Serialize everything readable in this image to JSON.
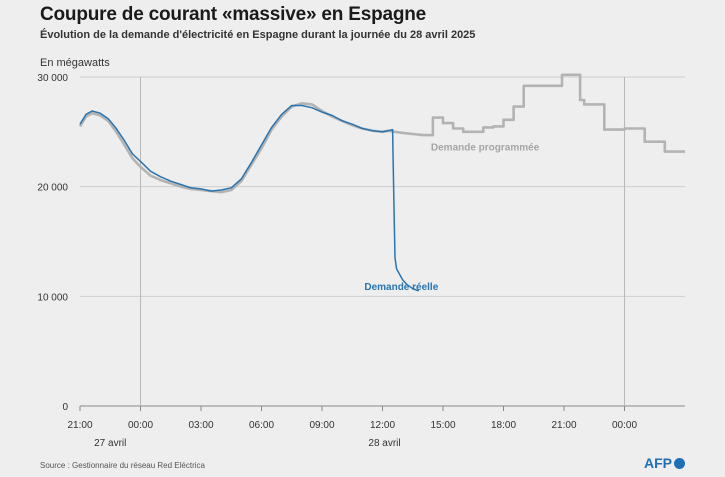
{
  "title": "Coupure de courant «massive» en Espagne",
  "subtitle": "Évolution de la demande d'électricité en Espagne durant la journée du 28 avril 2025",
  "unit_label": "En mégawatts",
  "source": "Source : Gestionnaire du réseau Red Eléctrica",
  "logo_text": "AFP",
  "colors": {
    "real": "#2a74b0",
    "planned": "#b3b3b3",
    "grid": "#cfcfcf"
  },
  "chart_data": {
    "type": "line",
    "ylim": [
      0,
      30000
    ],
    "yticks": [
      0,
      10000,
      20000,
      30000
    ],
    "ytick_labels": [
      "0",
      "10 000",
      "20 000",
      "30 000"
    ],
    "xlim": [
      21,
      51
    ],
    "xticks": [
      21,
      24,
      27,
      30,
      33,
      36,
      39,
      42,
      45,
      48
    ],
    "xtick_labels": [
      "21:00",
      "00:00",
      "03:00",
      "06:00",
      "09:00",
      "12:00",
      "15:00",
      "18:00",
      "21:00",
      "00:00"
    ],
    "day_labels": [
      {
        "x": 22.5,
        "text": "27 avril"
      },
      {
        "x": 36.1,
        "text": "28 avril"
      }
    ],
    "day_separators": [
      24,
      48
    ],
    "series": [
      {
        "name": "Demande programmée",
        "x": [
          21,
          21.3,
          21.6,
          22,
          22.4,
          22.8,
          23.2,
          23.6,
          24,
          24.5,
          25,
          25.5,
          26,
          26.5,
          27,
          27.5,
          28,
          28.5,
          29,
          29.5,
          30,
          30.5,
          31,
          31.5,
          32,
          32.5,
          33,
          33.5,
          34,
          34.5,
          35,
          35.5,
          36,
          36.3,
          36.6,
          37,
          37.5,
          38,
          38.5,
          38.5,
          39,
          39,
          39.5,
          39.5,
          40,
          40,
          41,
          41,
          41.5,
          41.5,
          42,
          42,
          42.5,
          42.5,
          43,
          43,
          44,
          44,
          44.9,
          44.9,
          45.8,
          45.8,
          46,
          46,
          47,
          47,
          48,
          48,
          49,
          49,
          50,
          50,
          51
        ],
        "y": [
          25500,
          26400,
          26700,
          26500,
          26000,
          25000,
          23800,
          22600,
          21800,
          21000,
          20600,
          20300,
          20000,
          19800,
          19700,
          19600,
          19500,
          19700,
          20500,
          22000,
          23500,
          25200,
          26400,
          27300,
          27600,
          27500,
          26900,
          26400,
          26000,
          25600,
          25300,
          25100,
          25000,
          25100,
          25000,
          24900,
          24800,
          24700,
          24700,
          26300,
          26300,
          25800,
          25800,
          25300,
          25300,
          25000,
          25000,
          25400,
          25400,
          25500,
          25500,
          26100,
          26100,
          27300,
          27300,
          29200,
          29200,
          29200,
          29200,
          30200,
          30200,
          27900,
          27900,
          27500,
          27500,
          25200,
          25200,
          25300,
          25300,
          24100,
          24100,
          23200,
          23200
        ]
      },
      {
        "name": "Demande réelle",
        "x": [
          21,
          21.3,
          21.6,
          22,
          22.4,
          22.8,
          23.2,
          23.6,
          24,
          24.5,
          25,
          25.5,
          26,
          26.5,
          27,
          27.5,
          28,
          28.5,
          29,
          29.5,
          30,
          30.5,
          31,
          31.5,
          32,
          32.5,
          33,
          33.5,
          34,
          34.5,
          35,
          35.5,
          36,
          36.3,
          36.5,
          36.56,
          36.62,
          36.7,
          36.85,
          37,
          37.2,
          37.5,
          37.8
        ],
        "y": [
          25700,
          26600,
          26900,
          26700,
          26200,
          25300,
          24200,
          23000,
          22300,
          21400,
          20900,
          20500,
          20200,
          19900,
          19800,
          19600,
          19700,
          19900,
          20700,
          22200,
          23800,
          25400,
          26600,
          27400,
          27400,
          27200,
          26800,
          26500,
          26000,
          25700,
          25300,
          25100,
          25000,
          25100,
          25200,
          19000,
          13500,
          12500,
          12000,
          11500,
          11100,
          10700,
          10500
        ]
      }
    ],
    "annotations": [
      {
        "text": "Demande programmée",
        "x": 38.4,
        "y": 23300
      },
      {
        "text": "Demande réelle",
        "x": 35.1,
        "y": 10600
      }
    ]
  }
}
